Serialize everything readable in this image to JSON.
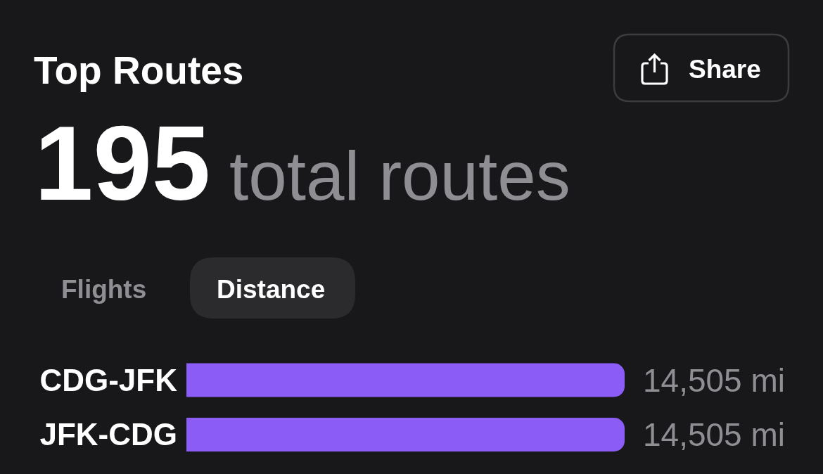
{
  "chart_data": {
    "type": "bar",
    "orientation": "horizontal",
    "title": "Top Routes",
    "annotations": [
      "195",
      "total routes",
      "Share",
      "Flights",
      "Distance"
    ],
    "categories": [
      "CDG-JFK",
      "JFK-CDG"
    ],
    "values": [
      14505,
      14505
    ],
    "value_labels": [
      "14,505 mi",
      "14,505 mi"
    ],
    "color": "#8b5cf6"
  }
}
